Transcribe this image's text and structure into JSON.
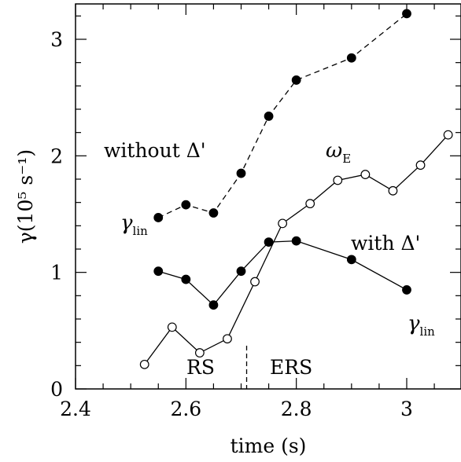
{
  "chart_data": {
    "type": "line",
    "xlabel": "time (s)",
    "ylabel": "γ(10⁵ s⁻¹)",
    "xlim": [
      2.4,
      3.05
    ],
    "ylim": [
      0,
      3.3
    ],
    "x_ticks": [
      "2.4",
      "2.6",
      "2.8",
      "3"
    ],
    "y_ticks": [
      "0",
      "1",
      "2",
      "3"
    ],
    "series": [
      {
        "style": "dashed",
        "marker": "filled",
        "points": [
          [
            2.55,
            1.47
          ],
          [
            2.6,
            1.58
          ],
          [
            2.65,
            1.51
          ],
          [
            2.7,
            1.85
          ],
          [
            2.75,
            2.34
          ],
          [
            2.8,
            2.65
          ],
          [
            2.9,
            2.84
          ],
          [
            3.0,
            3.22
          ]
        ]
      },
      {
        "style": "solid",
        "marker": "filled",
        "points": [
          [
            2.55,
            1.01
          ],
          [
            2.6,
            0.94
          ],
          [
            2.65,
            0.72
          ],
          [
            2.7,
            1.01
          ],
          [
            2.75,
            1.26
          ],
          [
            2.8,
            1.27
          ],
          [
            2.9,
            1.11
          ],
          [
            3.0,
            0.85
          ]
        ]
      },
      {
        "style": "solid",
        "marker": "open",
        "points": [
          [
            2.525,
            0.21
          ],
          [
            2.575,
            0.53
          ],
          [
            2.625,
            0.31
          ],
          [
            2.675,
            0.43
          ],
          [
            2.725,
            0.92
          ],
          [
            2.775,
            1.42
          ],
          [
            2.825,
            1.59
          ],
          [
            2.875,
            1.79
          ],
          [
            2.925,
            1.84
          ],
          [
            2.975,
            1.7
          ],
          [
            3.025,
            1.92
          ],
          [
            3.075,
            2.18
          ]
        ]
      }
    ],
    "annotations": {
      "without_delta": "without Δ'",
      "with_delta": "with Δ'",
      "gamma_lin_upper": {
        "symbol": "γ",
        "subscript": "lin"
      },
      "gamma_lin_lower": {
        "symbol": "γ",
        "subscript": "lin"
      },
      "omega_e": {
        "symbol": "ω",
        "subscript": "E"
      },
      "rs": "RS",
      "ers": "ERS"
    },
    "transition_x": 2.71
  }
}
